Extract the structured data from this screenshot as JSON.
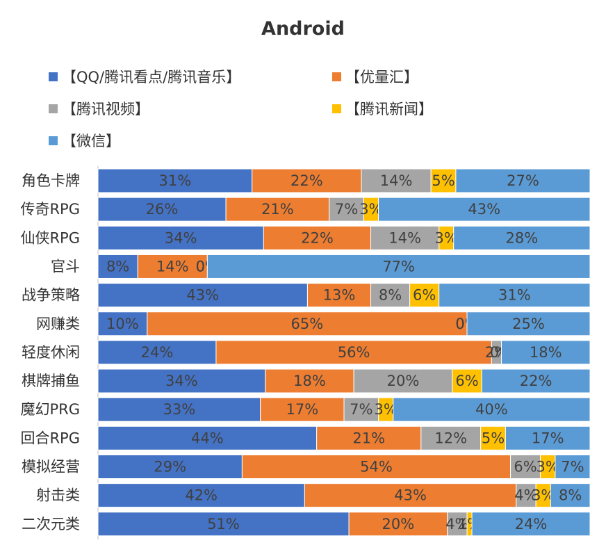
{
  "chart_data": {
    "type": "bar",
    "orientation": "horizontal",
    "stacked": "percent",
    "title": "Android",
    "legend_position": "top",
    "categories": [
      "角色卡牌",
      "传奇RPG",
      "仙侠RPG",
      "官斗",
      "战争策略",
      "网赚类",
      "轻度休闲",
      "棋牌捕鱼",
      "魔幻PRG",
      "回合RPG",
      "模拟经营",
      "射击类",
      "二次元类"
    ],
    "series": [
      {
        "name": "【QQ/腾讯看点/腾讯音乐】",
        "color": "#4472C4",
        "values": [
          31,
          26,
          34,
          8,
          43,
          10,
          24,
          34,
          33,
          44,
          29,
          42,
          51
        ]
      },
      {
        "name": "【优量汇】",
        "color": "#ED7D31",
        "values": [
          22,
          21,
          22,
          14,
          13,
          65,
          56,
          18,
          17,
          21,
          54,
          43,
          20
        ]
      },
      {
        "name": "【腾讯视频】",
        "color": "#A5A5A5",
        "values": [
          14,
          7,
          14,
          0,
          8,
          0,
          2,
          20,
          7,
          12,
          6,
          4,
          4
        ]
      },
      {
        "name": "【腾讯新闻】",
        "color": "#FFC000",
        "values": [
          5,
          3,
          3,
          0,
          6,
          0,
          0,
          6,
          3,
          5,
          3,
          3,
          1
        ]
      },
      {
        "name": "【微信】",
        "color": "#5B9BD5",
        "values": [
          27,
          43,
          28,
          77,
          31,
          25,
          18,
          22,
          40,
          17,
          7,
          8,
          24
        ]
      }
    ],
    "grid": false
  }
}
